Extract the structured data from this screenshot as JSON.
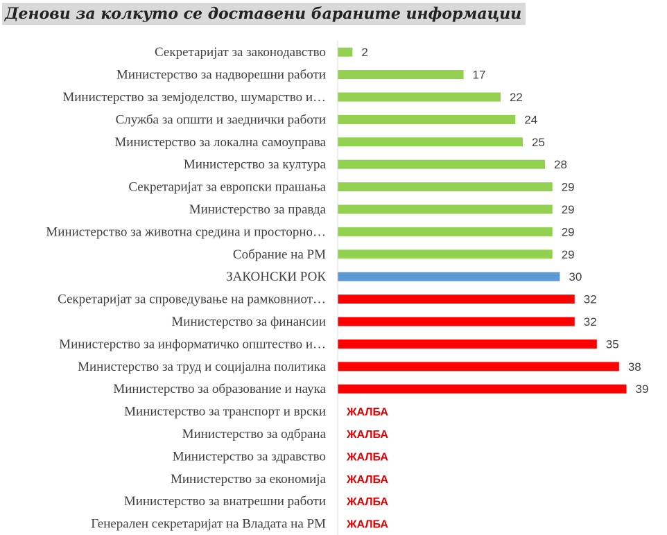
{
  "chart_data": {
    "type": "bar",
    "orientation": "horizontal",
    "title": "Денови за колкуто се доставени бараните информации",
    "xlim": [
      0,
      40
    ],
    "grid": false,
    "legend": "none",
    "colors": {
      "below": "#92d050",
      "deadline": "#5b9bd5",
      "above": "#ff0000",
      "appeal_text": "#e00000"
    },
    "categories": [
      "Секретаријат за законодавство",
      "Министерство за надворешни работи",
      "Министерство за земјоделство, шумарство и…",
      "Служба за општи и заеднички работи",
      "Министерство за локална самоуправа",
      "Министерство за култура",
      "Секретаријат за европски прашања",
      "Министерство за правда",
      "Министерство за животна средина и просторно…",
      "Собрание на РМ",
      "ЗАКОНСКИ РОК",
      "Секретаријат за спроведување на рамковниот…",
      "Министерство за финансии",
      "Министерство за информатичко општество и…",
      "Министерство за труд и социјална политика",
      "Министерство за образование и наука",
      "Министерство за транспорт и врски",
      "Министерство за одбрана",
      "Министерство за здравство",
      "Министерство за економија",
      "Министерство за внатрешни работи",
      "Генерален секретаријат на Владата на РМ"
    ],
    "values": [
      2,
      17,
      22,
      24,
      25,
      28,
      29,
      29,
      29,
      29,
      30,
      32,
      32,
      35,
      38,
      39,
      null,
      null,
      null,
      null,
      null,
      null
    ],
    "value_labels": [
      "2",
      "17",
      "22",
      "24",
      "25",
      "28",
      "29",
      "29",
      "29",
      "29",
      "30",
      "32",
      "32",
      "35",
      "38",
      "39",
      "ЖАЛБА",
      "ЖАЛБА",
      "ЖАЛБА",
      "ЖАЛБА",
      "ЖАЛБА",
      "ЖАЛБА"
    ],
    "status": [
      "below",
      "below",
      "below",
      "below",
      "below",
      "below",
      "below",
      "below",
      "below",
      "below",
      "deadline",
      "above",
      "above",
      "above",
      "above",
      "above",
      "appeal",
      "appeal",
      "appeal",
      "appeal",
      "appeal",
      "appeal"
    ]
  }
}
